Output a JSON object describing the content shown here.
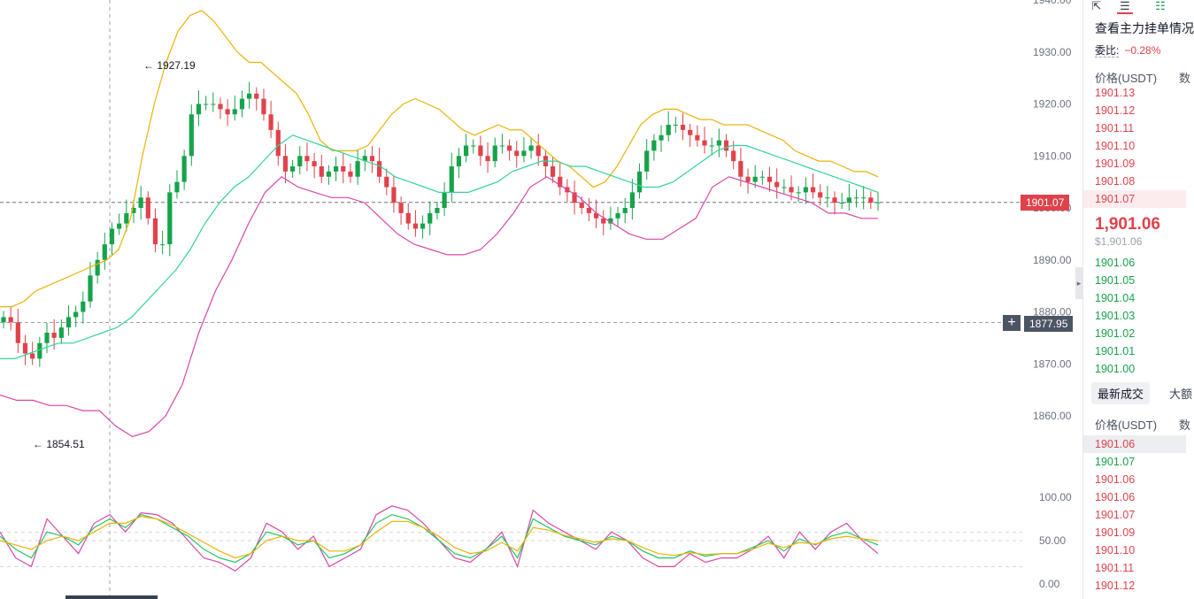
{
  "chart_data": [
    {
      "type": "candlestick",
      "title": "",
      "overlays": [
        "Bollinger upper",
        "Bollinger middle",
        "Bollinger lower"
      ],
      "y_axis": {
        "ticks": [
          1940,
          1930,
          1920,
          1910,
          1900,
          1890,
          1880,
          1870,
          1860
        ],
        "tick_labels": [
          "1940.00",
          "1930.00",
          "1920.00",
          "1910.00",
          "1900.00",
          "1890.00",
          "1880.00",
          "1870.00",
          "1860.00"
        ],
        "ylim": [
          1858,
          1940
        ]
      },
      "high_annotation": "1927.19",
      "low_annotation": "1854.51",
      "current_price_label": "1901.07",
      "crosshair_price_label": "1877.95",
      "current_price": 1901.07,
      "crosshair_price": 1877.95,
      "close": [
        1879,
        1878,
        1874,
        1872,
        1871,
        1874,
        1876,
        1875,
        1877,
        1879,
        1880,
        1882,
        1887,
        1890,
        1893,
        1896,
        1897,
        1899,
        1900,
        1902,
        1898,
        1893,
        1893,
        1903,
        1905,
        1910,
        1918,
        1920,
        1920,
        1920,
        1919,
        1918,
        1919,
        1921,
        1922,
        1921,
        1918,
        1915,
        1910,
        1907,
        1908,
        1910,
        1909,
        1908,
        1906,
        1907,
        1908,
        1907,
        1906,
        1909,
        1910,
        1909,
        1906,
        1904,
        1901,
        1899,
        1897,
        1896,
        1897,
        1899,
        1900,
        1903,
        1908,
        1910,
        1912,
        1912,
        1910,
        1909,
        1912,
        1912,
        1911,
        1910,
        1911,
        1912,
        1910,
        1908,
        1906,
        1904,
        1903,
        1901,
        1900,
        1899,
        1898,
        1897,
        1898,
        1899,
        1900,
        1903,
        1907,
        1911,
        1913,
        1914,
        1916,
        1916,
        1915,
        1914,
        1913,
        1912,
        1912,
        1913,
        1911,
        1909,
        1906,
        1905,
        1906,
        1906,
        1905,
        1904,
        1904,
        1903,
        1903,
        1904,
        1903,
        1902,
        1902,
        1901,
        1901,
        1902,
        1902,
        1902,
        1901,
        1901.07
      ],
      "bollinger_upper": [
        1881,
        1881,
        1882,
        1884,
        1885,
        1886,
        1887,
        1888,
        1889,
        1890,
        1892,
        1898,
        1910,
        1920,
        1928,
        1934,
        1937,
        1938,
        1936,
        1933,
        1930,
        1928,
        1928,
        1926,
        1924,
        1922,
        1918,
        1913,
        1911,
        1911,
        1911,
        1912,
        1915,
        1918,
        1920,
        1921,
        1920,
        1919,
        1917,
        1915,
        1914,
        1915,
        1916,
        1915,
        1915,
        1913,
        1911,
        1909,
        1908,
        1906,
        1904,
        1905,
        1908,
        1912,
        1916,
        1918,
        1919,
        1919,
        1918,
        1917,
        1917,
        1916,
        1916,
        1916,
        1915,
        1914,
        1913,
        1911,
        1910,
        1909,
        1909,
        1908,
        1907,
        1907,
        1906
      ],
      "bollinger_middle": [
        1871,
        1871,
        1872,
        1873,
        1874,
        1874,
        1875,
        1876,
        1877,
        1879,
        1882,
        1885,
        1888,
        1892,
        1897,
        1901,
        1904,
        1906,
        1909,
        1912,
        1914,
        1913,
        1912,
        1911,
        1910,
        1909,
        1908,
        1906,
        1905,
        1904,
        1903,
        1903,
        1903,
        1904,
        1905,
        1907,
        1908,
        1909,
        1909,
        1908,
        1908,
        1907,
        1906,
        1905,
        1904,
        1904,
        1905,
        1907,
        1909,
        1911,
        1912,
        1912,
        1911,
        1910,
        1909,
        1908,
        1907,
        1906,
        1905,
        1904,
        1903
      ],
      "bollinger_lower": [
        1864,
        1863,
        1863,
        1862,
        1862,
        1861,
        1861,
        1858,
        1856,
        1857,
        1860,
        1866,
        1876,
        1884,
        1890,
        1897,
        1903,
        1906,
        1904,
        1903,
        1902,
        1902,
        1901,
        1898,
        1895,
        1893,
        1892,
        1891,
        1891,
        1892,
        1895,
        1899,
        1904,
        1906,
        1904,
        1902,
        1899,
        1897,
        1895,
        1894,
        1894,
        1896,
        1898,
        1904,
        1906,
        1905,
        1904,
        1903,
        1902,
        1901,
        1899,
        1899,
        1898,
        1898
      ]
    },
    {
      "type": "line",
      "title": "",
      "y_axis": {
        "ticks": [
          100,
          50,
          0
        ],
        "tick_labels": [
          "100.00",
          "50.00",
          "0.00"
        ],
        "ylim": [
          0,
          100
        ]
      },
      "series": [
        {
          "color": "#d946a8",
          "values": [
            60,
            30,
            20,
            75,
            55,
            35,
            70,
            80,
            60,
            82,
            80,
            70,
            50,
            30,
            25,
            15,
            30,
            70,
            60,
            40,
            55,
            20,
            30,
            40,
            80,
            90,
            85,
            70,
            50,
            30,
            25,
            40,
            60,
            20,
            85,
            70,
            60,
            50,
            40,
            60,
            50,
            30,
            20,
            20,
            35,
            25,
            30,
            30,
            40,
            55,
            30,
            60,
            40,
            60,
            70,
            50,
            35
          ]
        },
        {
          "color": "#22c55e",
          "values": [
            55,
            40,
            30,
            60,
            55,
            45,
            65,
            75,
            65,
            80,
            75,
            65,
            55,
            40,
            30,
            25,
            35,
            60,
            55,
            45,
            50,
            30,
            35,
            45,
            70,
            80,
            75,
            65,
            50,
            35,
            30,
            40,
            55,
            30,
            75,
            65,
            55,
            50,
            45,
            55,
            50,
            38,
            30,
            30,
            38,
            32,
            35,
            35,
            42,
            50,
            38,
            52,
            45,
            55,
            60,
            52,
            45
          ]
        },
        {
          "color": "#eab308",
          "values": [
            50,
            45,
            40,
            50,
            55,
            50,
            60,
            70,
            70,
            78,
            75,
            68,
            58,
            48,
            38,
            30,
            35,
            50,
            55,
            50,
            50,
            38,
            38,
            45,
            60,
            72,
            72,
            65,
            55,
            42,
            35,
            38,
            48,
            38,
            65,
            62,
            56,
            52,
            48,
            52,
            50,
            42,
            35,
            33,
            36,
            34,
            35,
            35,
            40,
            47,
            42,
            48,
            46,
            52,
            55,
            52,
            50
          ]
        }
      ]
    }
  ],
  "colors": {
    "up": "#16a34a",
    "down": "#e0424c",
    "bb_upper": "#eab308",
    "bb_mid": "#34d399",
    "bb_lower": "#d946a8",
    "grid": "#9ca3af",
    "axis_text": "#6b7280"
  },
  "panel": {
    "toolbar_icons": [
      "export-icon",
      "orderbook-both-icon",
      "orderbook-list-icon"
    ],
    "title": "查看主力挂单情况",
    "ratio_label": "委比:",
    "ratio_value": "−0.28%",
    "price_col_header": "价格(USDT)",
    "qty_col_header": "数",
    "asks": [
      "1901.13",
      "1901.12",
      "1901.11",
      "1901.10",
      "1901.09",
      "1901.08",
      "1901.07"
    ],
    "last_price": "1,901.06",
    "last_price_usd": "$1,901.06",
    "bids": [
      "1901.06",
      "1901.05",
      "1901.04",
      "1901.03",
      "1901.02",
      "1901.01",
      "1901.00"
    ],
    "tab_latest": "最新成交",
    "tab_big": "大额",
    "trades": [
      {
        "price": "1901.06",
        "side": "red"
      },
      {
        "price": "1901.07",
        "side": "green"
      },
      {
        "price": "1901.06",
        "side": "red"
      },
      {
        "price": "1901.06",
        "side": "red"
      },
      {
        "price": "1901.07",
        "side": "red"
      },
      {
        "price": "1901.09",
        "side": "red"
      },
      {
        "price": "1901.10",
        "side": "red"
      },
      {
        "price": "1901.11",
        "side": "red"
      },
      {
        "price": "1901.12",
        "side": "red"
      }
    ]
  }
}
